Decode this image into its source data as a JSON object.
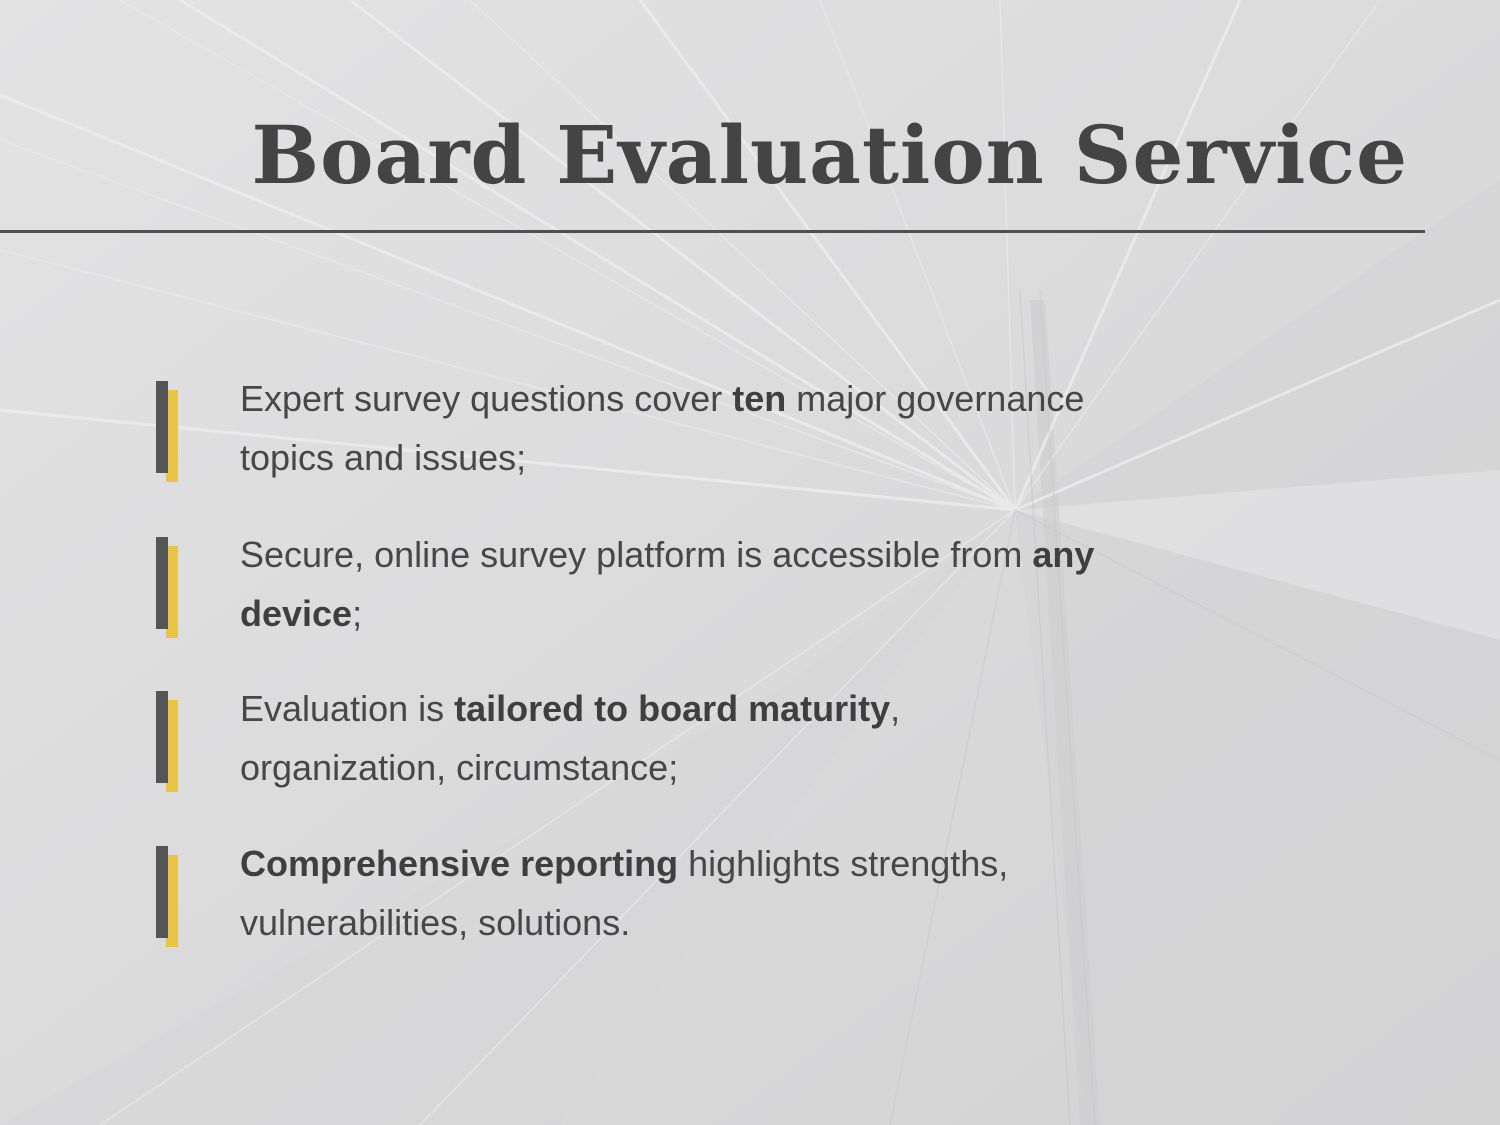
{
  "slide": {
    "title": "Board Evaluation Service"
  },
  "bullets": [
    {
      "segments": [
        {
          "text": "Expert survey questions cover ",
          "bold": false
        },
        {
          "text": "ten",
          "bold": true
        },
        {
          "text": " major governance topics and issues;",
          "bold": false
        }
      ]
    },
    {
      "segments": [
        {
          "text": "Secure, online survey platform is accessible from ",
          "bold": false
        },
        {
          "text": "any device",
          "bold": true
        },
        {
          "text": ";",
          "bold": false
        }
      ]
    },
    {
      "segments": [
        {
          "text": "Evaluation is ",
          "bold": false
        },
        {
          "text": "tailored to board maturity",
          "bold": true
        },
        {
          "text": ", organization, circumstance;",
          "bold": false
        }
      ]
    },
    {
      "segments": [
        {
          "text": "Comprehensive reporting",
          "bold": true
        },
        {
          "text": " highlights strengths, vulnerabilities, solutions.",
          "bold": false
        }
      ]
    }
  ],
  "colors": {
    "accent_gold": "#e8c547",
    "marker_dark": "#555555",
    "text": "#444444",
    "background": "#dcdcdd"
  }
}
